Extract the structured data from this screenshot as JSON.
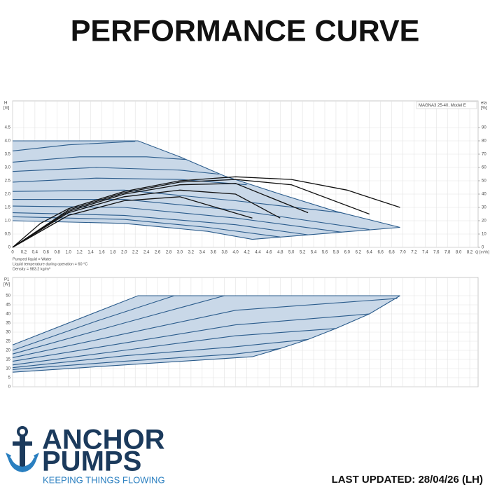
{
  "title": "PERFORMANCE CURVE",
  "chart_data": [
    {
      "type": "line",
      "ylabel": "H",
      "yunit": "[m]",
      "y2label": "eta",
      "y2unit": "[%]",
      "xlabel": "Q [m³/h]",
      "model": "MAGNA3 25-40, Model E",
      "notes": [
        "Pumped liquid = Water",
        "Liquid temperature during operation = 60 °C",
        "Density = 983.2 kg/m³"
      ],
      "xlim": [
        0,
        8.35
      ],
      "ylim": [
        0,
        5.5
      ],
      "y2lim": [
        0,
        110
      ],
      "xticks": [
        0,
        0.2,
        0.4,
        0.6,
        0.8,
        {
          "value": 1,
          "label": "1.0"
        },
        1.2,
        1.4,
        1.6,
        1.8,
        {
          "value": 2,
          "label": "2.0"
        },
        2.2,
        2.4,
        2.6,
        2.8,
        {
          "value": 3,
          "label": "3.0"
        },
        3.2,
        3.4,
        3.6,
        3.8,
        {
          "value": 4,
          "label": "4.0"
        },
        4.2,
        4.4,
        4.6,
        4.8,
        {
          "value": 5,
          "label": "5.0"
        },
        5.2,
        5.4,
        5.6,
        5.8,
        {
          "value": 6,
          "label": "6.0"
        },
        6.2,
        6.4,
        6.6,
        6.8,
        {
          "value": 7,
          "label": "7.0"
        },
        7.2,
        7.4,
        7.6,
        7.8,
        {
          "value": 8,
          "label": "8.0"
        },
        8.2
      ],
      "yticks": [
        0,
        0.5,
        {
          "value": 1,
          "label": "1.0"
        },
        1.5,
        {
          "value": 2,
          "label": "2.0"
        },
        2.5,
        {
          "value": 3,
          "label": "3.0"
        },
        3.5,
        {
          "value": 4,
          "label": "4.0"
        },
        4.5
      ],
      "y2ticks": [
        0,
        10,
        20,
        30,
        40,
        50,
        60,
        70,
        80,
        90
      ],
      "grid": true,
      "fill_color": "#c9d8e8",
      "series": [
        {
          "color": "#2b5c8c",
          "x": [
            0,
            2.25,
            3.0,
            3.8,
            4.8,
            5.8,
            6.95
          ],
          "values": [
            4.0,
            4.0,
            3.4,
            2.68,
            2.0,
            1.35,
            0.75
          ]
        },
        {
          "color": "#2b5c8c",
          "x": [
            0,
            1.0,
            2.2
          ],
          "values": [
            3.62,
            3.85,
            3.98
          ]
        },
        {
          "color": "#2b5c8c",
          "x": [
            0,
            1.2,
            2.4,
            3.1
          ],
          "values": [
            3.2,
            3.4,
            3.4,
            3.3
          ]
        },
        {
          "color": "#2b5c8c",
          "x": [
            0,
            1.5,
            3.0,
            3.7
          ],
          "values": [
            2.85,
            3.0,
            2.9,
            2.75
          ]
        },
        {
          "color": "#2b5c8c",
          "x": [
            0,
            1.5,
            3.0,
            4.2
          ],
          "values": [
            2.45,
            2.6,
            2.55,
            2.35
          ]
        },
        {
          "color": "#2b5c8c",
          "x": [
            0,
            2,
            4,
            5.9
          ],
          "values": [
            2.1,
            2.15,
            1.75,
            1.3
          ]
        },
        {
          "color": "#2b5c8c",
          "x": [
            0,
            2,
            4,
            6.4
          ],
          "values": [
            1.8,
            1.8,
            1.4,
            0.67
          ]
        },
        {
          "color": "#2b5c8c",
          "x": [
            0,
            2,
            4,
            5.9
          ],
          "values": [
            1.55,
            1.5,
            1.1,
            0.57
          ]
        },
        {
          "color": "#2b5c8c",
          "x": [
            0,
            2,
            4,
            5.3
          ],
          "values": [
            1.3,
            1.2,
            0.85,
            0.47
          ]
        },
        {
          "color": "#2b5c8c",
          "x": [
            0,
            2,
            3.5,
            4.8
          ],
          "values": [
            1.15,
            1.05,
            0.75,
            0.39
          ]
        },
        {
          "color": "#2b5c8c",
          "x": [
            0,
            2,
            3.5,
            4.3,
            6.95
          ],
          "values": [
            1.0,
            0.9,
            0.6,
            0.3,
            0.75
          ]
        },
        {
          "color": "#111111",
          "axis": "y2",
          "x": [
            0,
            0.5,
            1,
            2,
            3,
            4,
            5,
            6,
            6.95
          ],
          "values": [
            0,
            18,
            29,
            42,
            50,
            53,
            51,
            43,
            30
          ]
        },
        {
          "color": "#111111",
          "axis": "y2",
          "x": [
            0,
            1,
            2,
            3,
            4,
            5,
            6.4
          ],
          "values": [
            0,
            28,
            41,
            49,
            51,
            47,
            25
          ]
        },
        {
          "color": "#111111",
          "axis": "y2",
          "x": [
            0,
            1,
            2,
            3,
            4,
            5.3
          ],
          "values": [
            0,
            27,
            40,
            47,
            48,
            26
          ]
        },
        {
          "color": "#111111",
          "axis": "y2",
          "x": [
            0,
            1,
            2,
            3,
            4,
            4.8
          ],
          "values": [
            0,
            26,
            38,
            43,
            40,
            22
          ]
        },
        {
          "color": "#111111",
          "axis": "y2",
          "x": [
            0,
            1,
            2,
            3,
            4.3
          ],
          "values": [
            0,
            24,
            35,
            38,
            22
          ]
        }
      ]
    },
    {
      "type": "line",
      "ylabel": "P1",
      "yunit": "[W]",
      "xlim": [
        0,
        8.35
      ],
      "ylim": [
        0,
        60
      ],
      "xticks": [
        0,
        0.2,
        0.4,
        0.6,
        0.8,
        1,
        1.2,
        1.4,
        1.6,
        1.8,
        2,
        2.2,
        2.4,
        2.6,
        2.8,
        3,
        3.2,
        3.4,
        3.6,
        3.8,
        4,
        4.2,
        4.4,
        4.6,
        4.8,
        5,
        5.2,
        5.4,
        5.6,
        5.8,
        6,
        6.2,
        6.4,
        6.6,
        6.8,
        7,
        7.2,
        7.4,
        7.6,
        7.8,
        8,
        8.2
      ],
      "yticks": [
        0,
        5,
        10,
        15,
        20,
        25,
        30,
        35,
        40,
        45,
        50
      ],
      "grid": true,
      "fill_color": "#c9d8e8",
      "series": [
        {
          "color": "#2b5c8c",
          "x": [
            0,
            2.25,
            6.95
          ],
          "values": [
            23,
            50,
            50
          ]
        },
        {
          "color": "#2b5c8c",
          "x": [
            0,
            1.5,
            2.9
          ],
          "values": [
            20,
            36,
            50
          ]
        },
        {
          "color": "#2b5c8c",
          "x": [
            0,
            2,
            3.8
          ],
          "values": [
            18,
            35,
            50
          ]
        },
        {
          "color": "#2b5c8c",
          "x": [
            0,
            2,
            4,
            6.9
          ],
          "values": [
            16,
            29,
            42,
            48.5
          ]
        },
        {
          "color": "#2b5c8c",
          "x": [
            0,
            2,
            4,
            6.4
          ],
          "values": [
            14,
            24,
            34,
            40
          ]
        },
        {
          "color": "#2b5c8c",
          "x": [
            0,
            2,
            4,
            5.8
          ],
          "values": [
            12,
            20,
            28,
            32
          ]
        },
        {
          "color": "#2b5c8c",
          "x": [
            0,
            2,
            4,
            5.3
          ],
          "values": [
            10.5,
            17,
            22,
            26
          ]
        },
        {
          "color": "#2b5c8c",
          "x": [
            0,
            2,
            4,
            4.8
          ],
          "values": [
            9.5,
            14,
            18,
            21
          ]
        },
        {
          "color": "#2b5c8c",
          "x": [
            0,
            2,
            4.3,
            4.8,
            5.3,
            5.8,
            6.4,
            6.95
          ],
          "values": [
            8,
            12,
            16.5,
            21,
            26,
            32,
            40,
            50
          ]
        }
      ]
    }
  ],
  "footer": {
    "brand_line1": "ANCHOR",
    "brand_line2": "PUMPS",
    "tagline": "KEEPING THINGS FLOWING",
    "updated": "LAST UPDATED: 28/04/26 (LH)"
  }
}
